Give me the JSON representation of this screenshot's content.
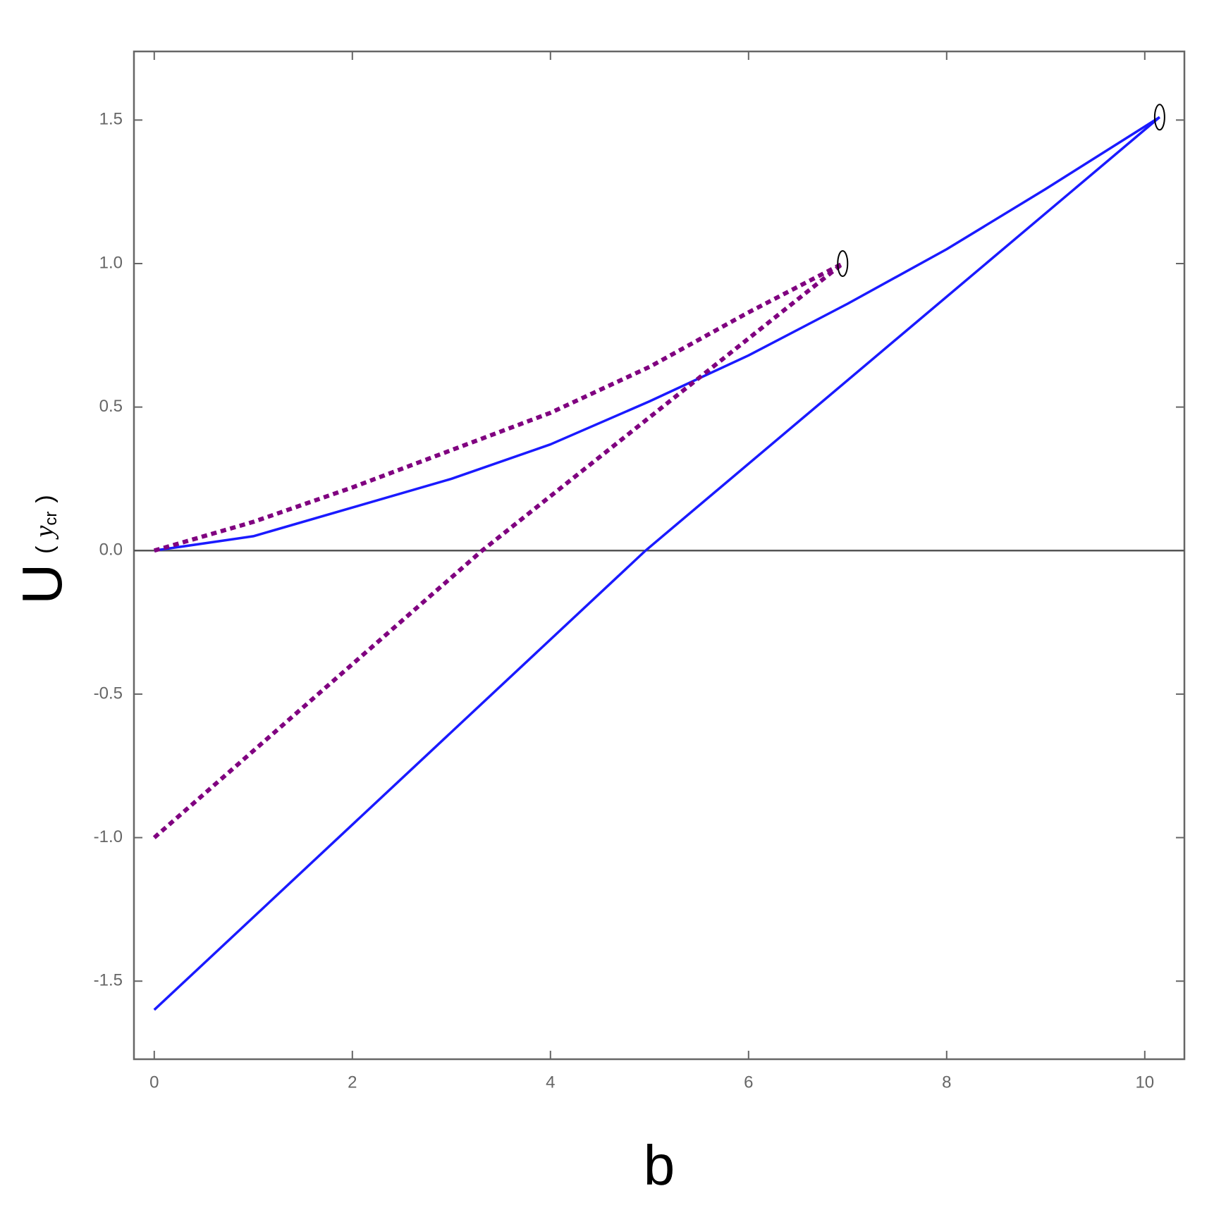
{
  "chart_data": {
    "type": "line",
    "xlabel": "b",
    "ylabel": {
      "main": "U",
      "open": "(",
      "argument": "y",
      "subscript": "cr",
      "close": ")"
    },
    "xlim": [
      -0.205,
      10.4
    ],
    "ylim": [
      -1.772,
      1.739
    ],
    "xticks": [
      0,
      2,
      4,
      6,
      8,
      10
    ],
    "yticks": [
      -1.5,
      {
        "value": -1.0,
        "label": "-1.0"
      },
      -0.5,
      {
        "value": 0.0,
        "label": "0.0"
      },
      0.5,
      {
        "value": 1.0,
        "label": "1.0"
      },
      1.5
    ],
    "zero_line": true,
    "series": [
      {
        "color": "#1a1aff",
        "style": "solid",
        "x": [
          0,
          1,
          2,
          3,
          4,
          5,
          6,
          7,
          8,
          9,
          10.15
        ],
        "values": [
          0,
          0.05,
          0.15,
          0.25,
          0.37,
          0.52,
          0.68,
          0.86,
          1.05,
          1.26,
          1.51
        ]
      },
      {
        "color": "#1a1aff",
        "style": "solid",
        "x": [
          0,
          4.96,
          10.15
        ],
        "values": [
          -1.6,
          0,
          1.51
        ]
      },
      {
        "color": "#800080",
        "style": "dotted",
        "x": [
          0,
          1,
          2,
          3,
          4,
          5,
          6,
          6.95
        ],
        "values": [
          0,
          0.1,
          0.22,
          0.35,
          0.48,
          0.64,
          0.83,
          1.0
        ]
      },
      {
        "color": "#800080",
        "style": "dotted",
        "x": [
          0,
          3.31,
          6.95
        ],
        "values": [
          -1.0,
          0,
          1.0
        ]
      }
    ],
    "markers": [
      {
        "x": 10.15,
        "y": 1.51
      },
      {
        "x": 6.95,
        "y": 1.0
      }
    ]
  }
}
